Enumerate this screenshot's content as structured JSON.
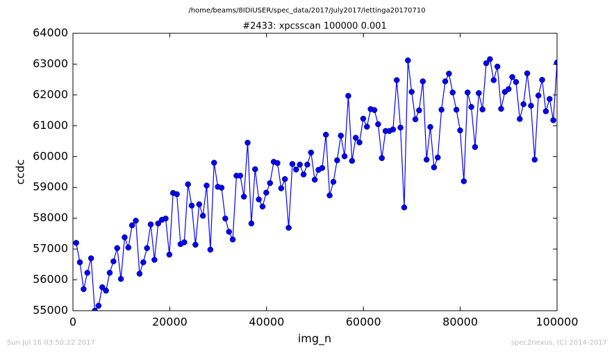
{
  "chart_data": {
    "type": "line",
    "header": "/home/beams/8IDIUSER/spec_data/2017/July2017/lettinga20170710",
    "title": "#2433: xpcsscan 100000 0.001",
    "xlabel": "img_n",
    "ylabel": "ccdc",
    "footer_left": "Sun Jul 16 03:50:22 2017",
    "footer_right": "spec2nexus, (C) 2014-2017",
    "xlim": [
      0,
      100000
    ],
    "xticks": [
      0,
      20000,
      40000,
      60000,
      80000,
      100000
    ],
    "ylim": [
      55000,
      64000
    ],
    "yticks": [
      55000,
      56000,
      57000,
      58000,
      59000,
      60000,
      61000,
      62000,
      63000,
      64000
    ],
    "x": [
      670,
      1440,
      2210,
      2980,
      3750,
      4520,
      5290,
      6060,
      6830,
      7600,
      8370,
      9140,
      9910,
      10680,
      11450,
      12220,
      12990,
      13760,
      14530,
      15300,
      16070,
      16840,
      17610,
      18380,
      19150,
      19920,
      20690,
      21460,
      22230,
      23000,
      23770,
      24540,
      25310,
      26080,
      26850,
      27620,
      28390,
      29160,
      29930,
      30700,
      31470,
      32240,
      33010,
      33780,
      34550,
      35320,
      36090,
      36860,
      37630,
      38400,
      39170,
      39940,
      40710,
      41480,
      42250,
      43020,
      43790,
      44560,
      45330,
      46100,
      46870,
      47640,
      48410,
      49180,
      49950,
      50720,
      51490,
      52260,
      53030,
      53800,
      54570,
      55340,
      56110,
      56880,
      57650,
      58420,
      59190,
      59960,
      60730,
      61500,
      62270,
      63040,
      63810,
      64580,
      65350,
      66120,
      66890,
      67660,
      68430,
      69200,
      69970,
      70740,
      71510,
      72280,
      73050,
      73820,
      74590,
      75360,
      76130,
      76900,
      77670,
      78440,
      79210,
      79980,
      80750,
      81520,
      82290,
      83060,
      83830,
      84600,
      85370,
      86140,
      86910,
      87680,
      88450,
      89220,
      89990,
      90760,
      91530,
      92300,
      93070,
      93840,
      94610,
      95380,
      96150,
      96920,
      97690,
      98460,
      99230,
      100000
    ],
    "series": [
      {
        "color": "#0000ff",
        "values": [
          57200,
          56570,
          55700,
          56230,
          56700,
          55000,
          55160,
          55760,
          55650,
          56230,
          56600,
          57030,
          56030,
          57380,
          57050,
          57770,
          57920,
          56200,
          56570,
          57030,
          57800,
          56650,
          57830,
          57950,
          57990,
          56820,
          58820,
          58780,
          57160,
          57220,
          59100,
          58410,
          57140,
          58450,
          58080,
          59060,
          56980,
          59800,
          59020,
          58990,
          57990,
          57560,
          57310,
          59380,
          59380,
          58700,
          60450,
          57830,
          59590,
          58610,
          58380,
          58830,
          59140,
          59830,
          59790,
          58970,
          59270,
          57690,
          59760,
          59580,
          59740,
          59420,
          59740,
          60130,
          59250,
          59570,
          59630,
          60710,
          58740,
          59180,
          59880,
          60680,
          60010,
          61970,
          59860,
          60610,
          60460,
          61230,
          60970,
          61540,
          61510,
          61050,
          59950,
          60830,
          60830,
          60880,
          62480,
          60940,
          58350,
          63120,
          62100,
          61210,
          61500,
          62440,
          59900,
          60960,
          59650,
          59970,
          61520,
          62440,
          62690,
          62080,
          61520,
          60850,
          59200,
          62080,
          61610,
          60310,
          62060,
          61530,
          63030,
          63160,
          62480,
          62920,
          61550,
          62100,
          62190,
          62580,
          62420,
          61220,
          61700,
          62700,
          61650,
          59900,
          61980,
          62490,
          61470,
          61870,
          61180,
          63050
        ]
      }
    ]
  }
}
